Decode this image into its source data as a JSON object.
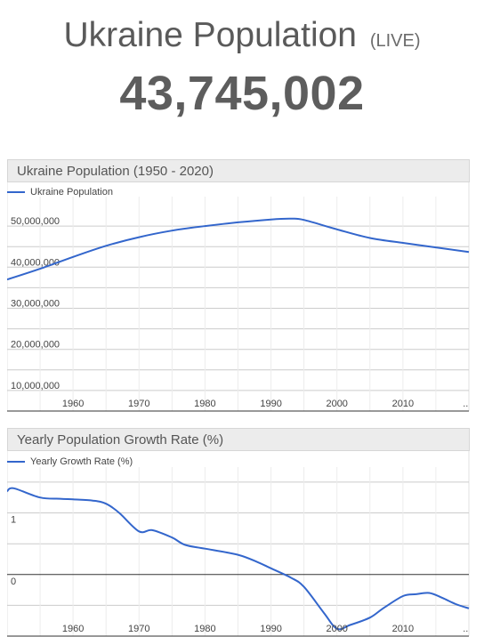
{
  "header": {
    "title": "Ukraine Population",
    "live_label": "(LIVE)",
    "counter": "43,745,002"
  },
  "colors": {
    "series": "#3366cc",
    "grid": "#cccccc",
    "baseline": "#333333"
  },
  "chart_data": [
    {
      "type": "line",
      "title": "Ukraine Population (1950 - 2020)",
      "legend": "top-left",
      "series": [
        {
          "name": "Ukraine Population",
          "x": [
            1950,
            1955,
            1960,
            1965,
            1970,
            1975,
            1980,
            1985,
            1990,
            1993,
            1995,
            2000,
            2005,
            2010,
            2015,
            2020
          ],
          "values": [
            37000000,
            39600000,
            42500000,
            45200000,
            47300000,
            48900000,
            50000000,
            50900000,
            51600000,
            51800000,
            51500000,
            49200000,
            47100000,
            45900000,
            44800000,
            43700000
          ]
        }
      ],
      "xlim": [
        1950,
        2020
      ],
      "ylim": [
        5000000,
        55000000
      ],
      "x_ticks": [
        {
          "value": 1960,
          "label": "1960"
        },
        {
          "value": 1970,
          "label": "1970"
        },
        {
          "value": 1980,
          "label": "1980"
        },
        {
          "value": 1990,
          "label": "1990"
        },
        {
          "value": 2000,
          "label": "2000"
        },
        {
          "value": 2010,
          "label": "2010"
        },
        {
          "value": 2019.5,
          "label": ".."
        }
      ],
      "y_ticks": [
        {
          "value": 10000000,
          "label": "10,000,000"
        },
        {
          "value": 20000000,
          "label": "20,000,000"
        },
        {
          "value": 30000000,
          "label": "30,000,000"
        },
        {
          "value": 40000000,
          "label": "40,000,000"
        },
        {
          "value": 50000000,
          "label": "50,000,000"
        }
      ],
      "grid": true
    },
    {
      "type": "line",
      "title": "Yearly Population Growth Rate (%)",
      "legend": "top-left",
      "series": [
        {
          "name": "Yearly Growth Rate (%)",
          "x": [
            1950,
            1951,
            1955,
            1958,
            1960,
            1963,
            1965,
            1967,
            1970,
            1972,
            1975,
            1977,
            1980,
            1985,
            1988,
            1990,
            1993,
            1995,
            1998,
            2000,
            2002,
            2005,
            2007,
            2010,
            2012,
            2014,
            2016,
            2018,
            2020
          ],
          "values": [
            1.35,
            1.4,
            1.25,
            1.23,
            1.22,
            1.2,
            1.15,
            1.0,
            0.7,
            0.72,
            0.6,
            0.48,
            0.42,
            0.32,
            0.2,
            0.1,
            -0.05,
            -0.2,
            -0.62,
            -0.88,
            -0.82,
            -0.7,
            -0.55,
            -0.35,
            -0.32,
            -0.3,
            -0.38,
            -0.48,
            -0.55
          ]
        }
      ],
      "xlim": [
        1950,
        2020
      ],
      "ylim": [
        -1.0,
        1.6
      ],
      "x_ticks": [
        {
          "value": 1960,
          "label": "1960"
        },
        {
          "value": 1970,
          "label": "1970"
        },
        {
          "value": 1980,
          "label": "1980"
        },
        {
          "value": 1990,
          "label": "1990"
        },
        {
          "value": 2000,
          "label": "2000"
        },
        {
          "value": 2010,
          "label": "2010"
        },
        {
          "value": 2019.5,
          "label": ".."
        }
      ],
      "y_ticks": [
        {
          "value": 1,
          "label": "1"
        },
        {
          "value": 0,
          "label": "0"
        }
      ],
      "grid": true
    }
  ]
}
